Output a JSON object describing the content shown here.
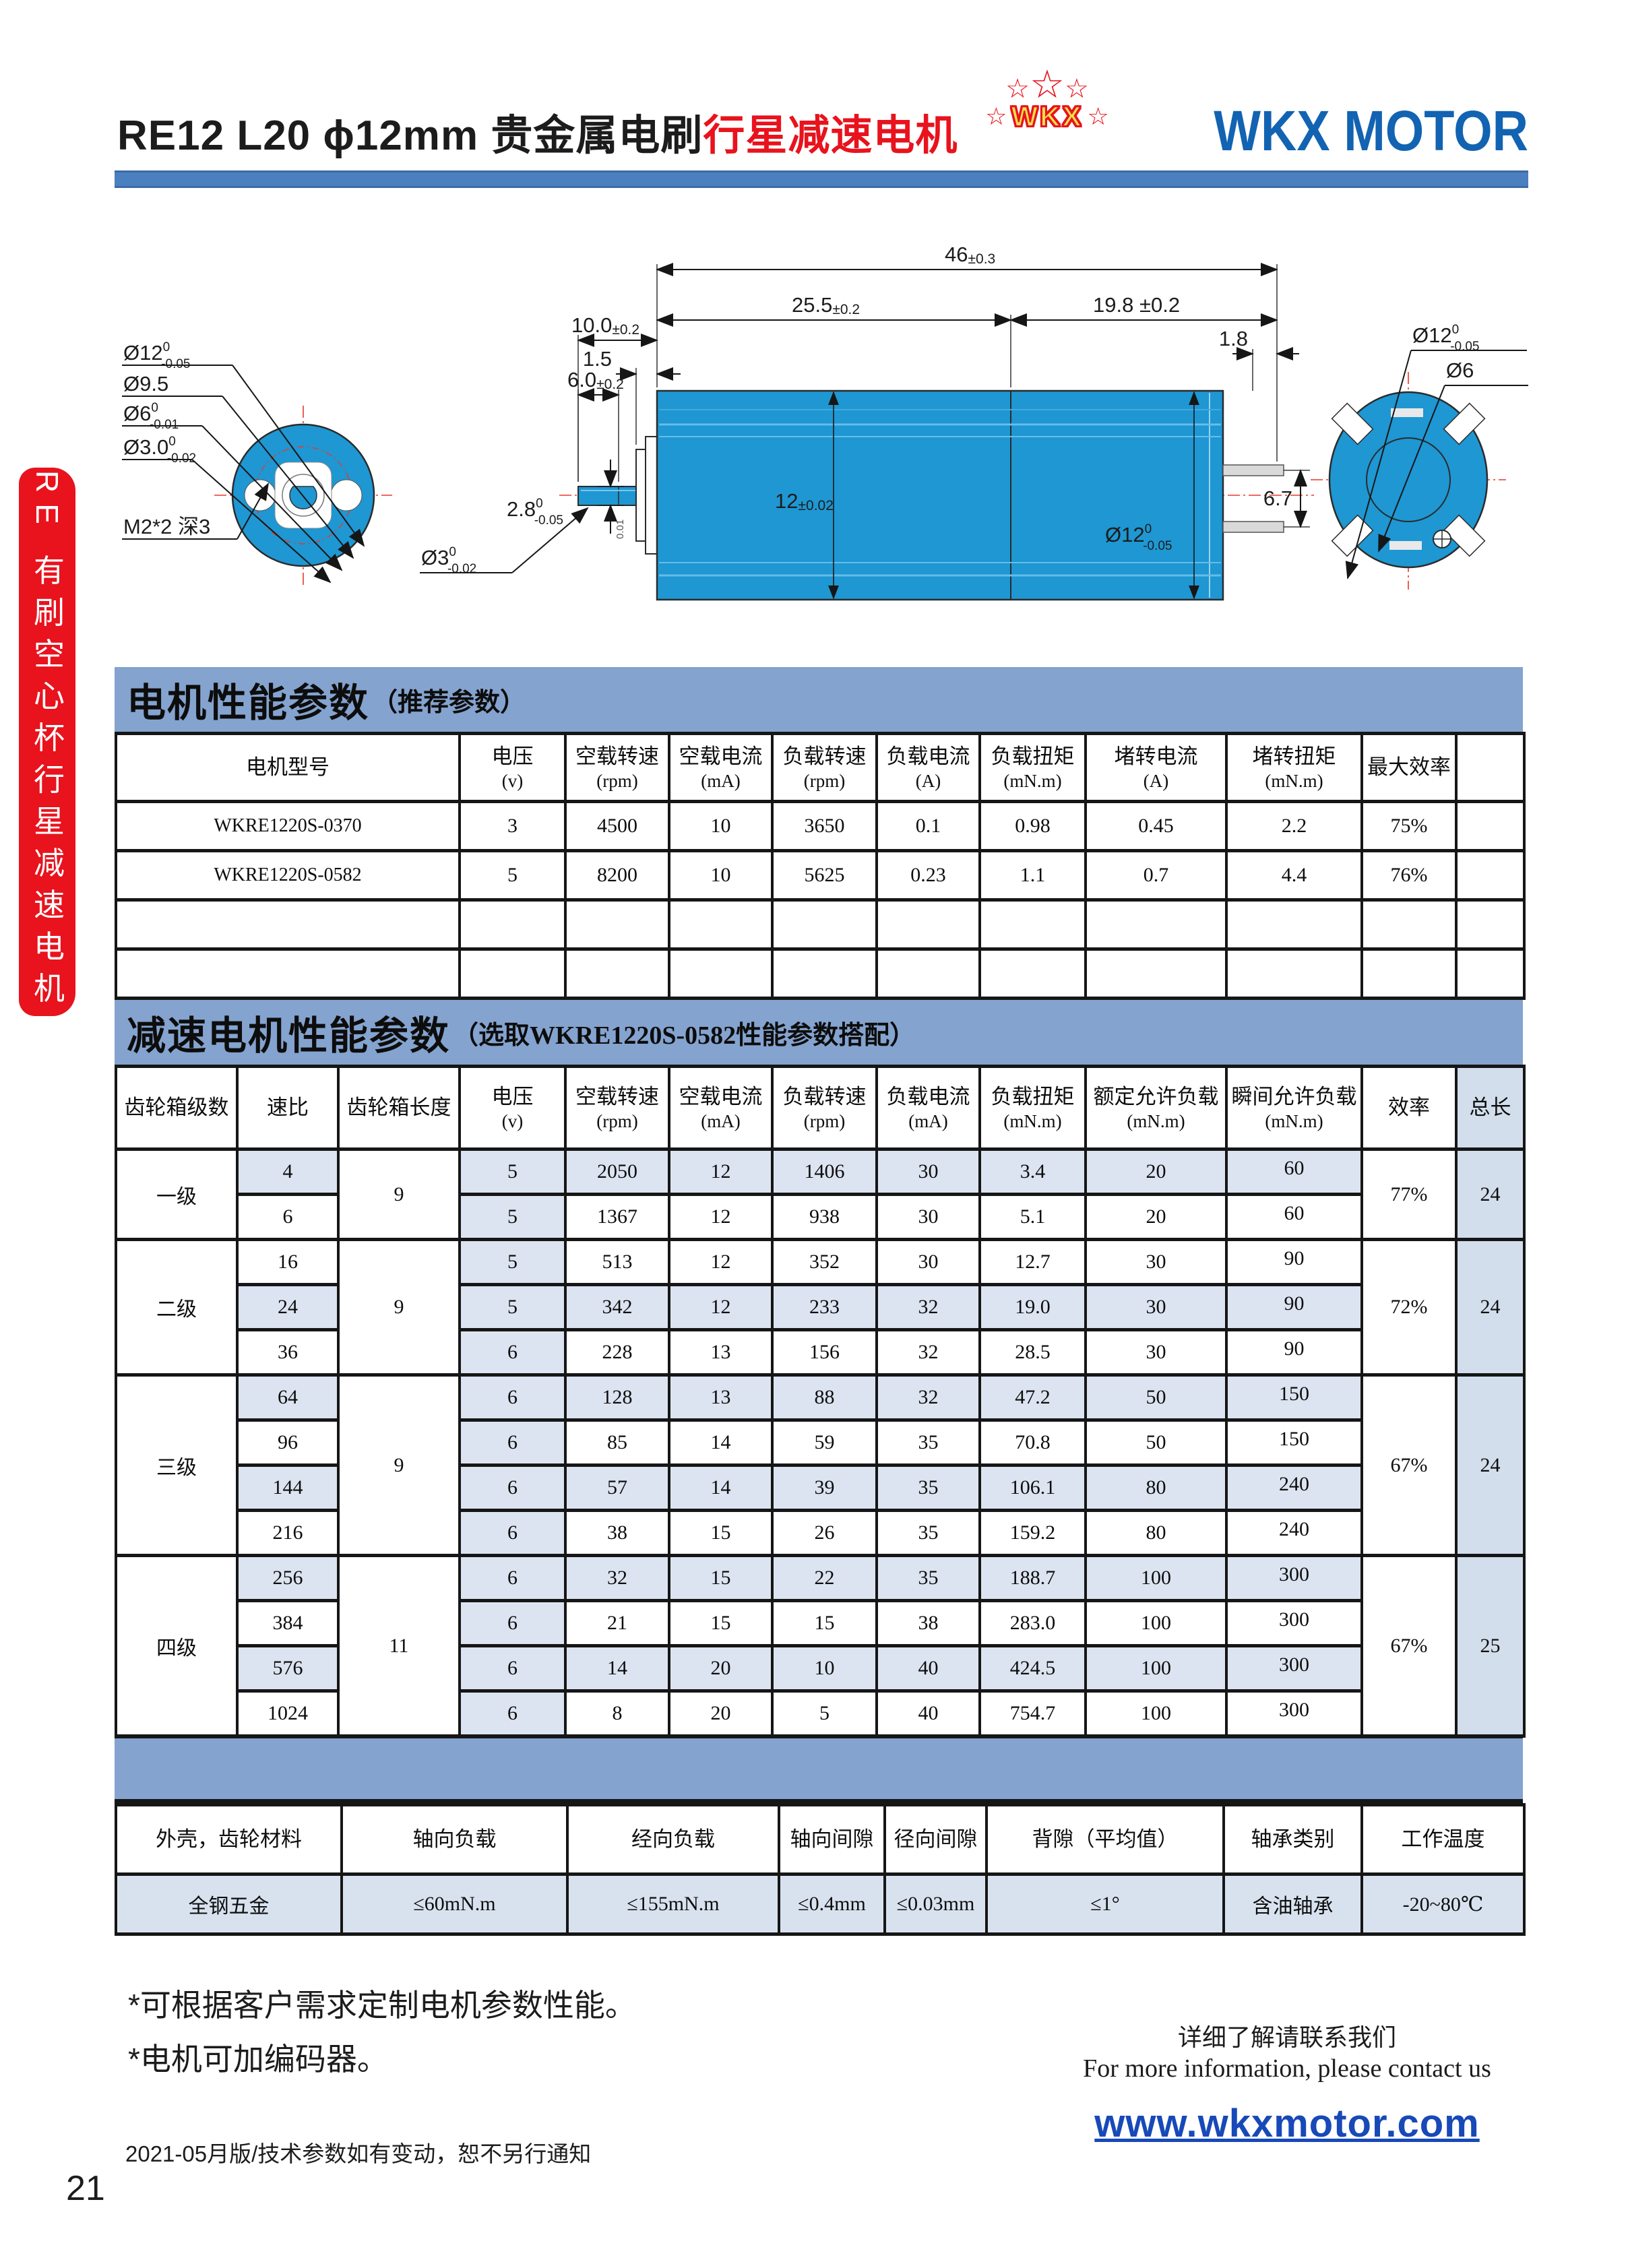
{
  "page": {
    "number": "21"
  },
  "header": {
    "title_model": "RE12 L20  ϕ12mm",
    "title_black": "贵金属电刷",
    "title_red": "行星减速电机",
    "logo_text": "WKX",
    "brand": "WKX MOTOR",
    "accent_blue": "#1263b2",
    "accent_red": "#e8131d"
  },
  "sidebar": {
    "label": "RE 有刷空心杯行星减速电机"
  },
  "drawing": {
    "motor_color": "#1e97d3",
    "left_labels": [
      {
        "main": "Ø12",
        "sup": "0",
        "sub": "-0.05"
      },
      {
        "main": "Ø9.5",
        "sup": "",
        "sub": ""
      },
      {
        "main": "Ø6",
        "sup": "0",
        "sub": "-0.01"
      },
      {
        "main": "Ø3.0",
        "sup": "0",
        "sub": "-0.02"
      },
      {
        "main": "M2*2 深3",
        "sup": "",
        "sub": ""
      }
    ],
    "dim_46": "46",
    "tol_46": "±0.3",
    "dim_255": "25.5",
    "tol_255": "±0.2",
    "dim_198": "19.8 ±0.2",
    "dim_100": "10.0",
    "tol_100": "±0.2",
    "dim_15": "1.5",
    "dim_18": "1.8",
    "dim_60": "6.0",
    "tol_60": "±0.2",
    "dim_28": "2.8",
    "sup_28": "0",
    "sub_28": "-0.05",
    "shaft_d": "Ø3",
    "sup_shaft": "0",
    "sub_shaft": "-0.02",
    "dim_12": "12",
    "tol_12": "±0.02",
    "body_d": "Ø12",
    "sup_body": "0",
    "sub_body": "-0.05",
    "dim_67": "6.7",
    "right_d12": "Ø12",
    "sup_r12": "0",
    "sub_r12": "-0.05",
    "right_d6": "Ø6",
    "flange_tol": "0.01"
  },
  "table1": {
    "title": "电机性能参数",
    "title_note": "（推荐参数）",
    "headers": [
      [
        "电机型号",
        ""
      ],
      [
        "电压",
        "(v)"
      ],
      [
        "空载转速",
        "(rpm)"
      ],
      [
        "空载电流",
        "(mA)"
      ],
      [
        "负载转速",
        "(rpm)"
      ],
      [
        "负载电流",
        "(A)"
      ],
      [
        "负载扭矩",
        "(mN.m)"
      ],
      [
        "堵转电流",
        "(A)"
      ],
      [
        "堵转扭矩",
        "(mN.m)"
      ],
      [
        "最大效率",
        ""
      ],
      [
        "",
        ""
      ]
    ],
    "rows": [
      {
        "model": "WKRE1220S-0370",
        "values": [
          "3",
          "4500",
          "10",
          "3650",
          "0.1",
          "0.98",
          "0.45",
          "2.2",
          "75%",
          ""
        ]
      },
      {
        "model": "WKRE1220S-0582",
        "values": [
          "5",
          "8200",
          "10",
          "5625",
          "0.23",
          "1.1",
          "0.7",
          "4.4",
          "76%",
          ""
        ]
      }
    ],
    "empty_row_count": 2
  },
  "table2": {
    "title": "减速电机性能参数",
    "title_note": "（选取WKRE1220S-0582性能参数搭配）",
    "headers": [
      [
        "齿轮箱级数",
        ""
      ],
      [
        "速比",
        ""
      ],
      [
        "齿轮箱长度",
        ""
      ],
      [
        "电压",
        "(v)"
      ],
      [
        "空载转速",
        "(rpm)"
      ],
      [
        "空载电流",
        "(mA)"
      ],
      [
        "负载转速",
        "(rpm)"
      ],
      [
        "负载电流",
        "(mA)"
      ],
      [
        "负载扭矩",
        "(mN.m)"
      ],
      [
        "额定允许负载",
        "(mN.m)"
      ],
      [
        "瞬间允许负载",
        "(mN.m)"
      ],
      [
        "效率",
        ""
      ],
      [
        "总长",
        ""
      ]
    ],
    "groups": [
      {
        "stage": "一级",
        "gear_length": "9",
        "efficiency": "77%",
        "total_length": "24",
        "rows": [
          {
            "ratio": "4",
            "shaded": true,
            "values": [
              "5",
              "2050",
              "12",
              "1406",
              "30",
              "3.4",
              "20",
              "60"
            ]
          },
          {
            "ratio": "6",
            "shaded": false,
            "values": [
              "5",
              "1367",
              "12",
              "938",
              "30",
              "5.1",
              "20",
              "60"
            ]
          }
        ]
      },
      {
        "stage": "二级",
        "gear_length": "9",
        "efficiency": "72%",
        "total_length": "24",
        "rows": [
          {
            "ratio": "16",
            "shaded": false,
            "values": [
              "5",
              "513",
              "12",
              "352",
              "30",
              "12.7",
              "30",
              "90"
            ]
          },
          {
            "ratio": "24",
            "shaded": true,
            "values": [
              "5",
              "342",
              "12",
              "233",
              "32",
              "19.0",
              "30",
              "90"
            ]
          },
          {
            "ratio": "36",
            "shaded": false,
            "values": [
              "6",
              "228",
              "13",
              "156",
              "32",
              "28.5",
              "30",
              "90"
            ]
          }
        ]
      },
      {
        "stage": "三级",
        "gear_length": "9",
        "efficiency": "67%",
        "total_length": "24",
        "rows": [
          {
            "ratio": "64",
            "shaded": true,
            "values": [
              "6",
              "128",
              "13",
              "88",
              "32",
              "47.2",
              "50",
              "150"
            ]
          },
          {
            "ratio": "96",
            "shaded": false,
            "values": [
              "6",
              "85",
              "14",
              "59",
              "35",
              "70.8",
              "50",
              "150"
            ]
          },
          {
            "ratio": "144",
            "shaded": true,
            "values": [
              "6",
              "57",
              "14",
              "39",
              "35",
              "106.1",
              "80",
              "240"
            ]
          },
          {
            "ratio": "216",
            "shaded": false,
            "values": [
              "6",
              "38",
              "15",
              "26",
              "35",
              "159.2",
              "80",
              "240"
            ]
          }
        ]
      },
      {
        "stage": "四级",
        "gear_length": "11",
        "efficiency": "67%",
        "total_length": "25",
        "rows": [
          {
            "ratio": "256",
            "shaded": true,
            "values": [
              "6",
              "32",
              "15",
              "22",
              "35",
              "188.7",
              "100",
              "300"
            ]
          },
          {
            "ratio": "384",
            "shaded": false,
            "values": [
              "6",
              "21",
              "15",
              "15",
              "38",
              "283.0",
              "100",
              "300"
            ]
          },
          {
            "ratio": "576",
            "shaded": true,
            "values": [
              "6",
              "14",
              "20",
              "10",
              "40",
              "424.5",
              "100",
              "300"
            ]
          },
          {
            "ratio": "1024",
            "shaded": false,
            "values": [
              "6",
              "8",
              "20",
              "5",
              "40",
              "754.7",
              "100",
              "300"
            ]
          }
        ]
      }
    ]
  },
  "table3": {
    "headers": [
      "外壳，齿轮材料",
      "轴向负载",
      "经向负载",
      "轴向间隙",
      "径向间隙",
      "背隙（平均值）",
      "轴承类别",
      "工作温度"
    ],
    "values": [
      "全钢五金",
      "≤60mN.m",
      "≤155mN.m",
      "≤0.4mm",
      "≤0.03mm",
      "≤1°",
      "含油轴承",
      "-20~80℃"
    ]
  },
  "footer": {
    "note1": "*可根据客户需求定制电机参数性能。",
    "note2": "*电机可加编码器。",
    "edition": "2021-05月版/技术参数如有变动，恕不另行通知",
    "contact_cn": "详细了解请联系我们",
    "contact_en": "For more information, please contact us",
    "website": "www.wkxmotor.com"
  }
}
